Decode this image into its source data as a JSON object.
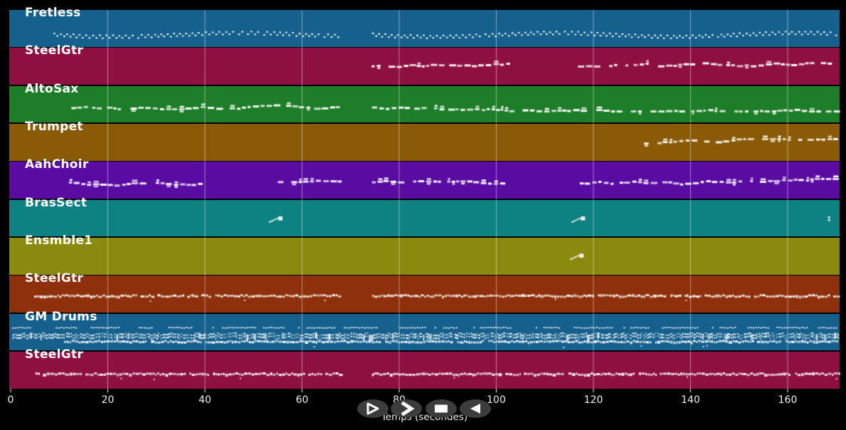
{
  "app": {
    "kind": "midi-track-player",
    "background_color": "#000000",
    "note_color": "#ffffff",
    "gridline_color": "rgba(255,255,255,0.45)"
  },
  "axis": {
    "label": "Temps (secondes)",
    "ticks": [
      0,
      20,
      40,
      60,
      80,
      100,
      120,
      140,
      160
    ],
    "max_seconds": 171
  },
  "controls": {
    "buttons": [
      {
        "name": "play",
        "icon": "play-icon",
        "shape": "triangle-right-outline"
      },
      {
        "name": "fast-forward",
        "icon": "fast-forward-icon",
        "shape": "chevron-right"
      },
      {
        "name": "stop",
        "icon": "stop-icon",
        "shape": "square"
      },
      {
        "name": "rewind",
        "icon": "rewind-icon",
        "shape": "triangle-left"
      }
    ]
  },
  "tracks": [
    {
      "name": "Fretless",
      "color": "#16608E",
      "segments": [
        {
          "start": 8.8,
          "end": 67.8,
          "row": 0.66,
          "style": "zigzag"
        },
        {
          "start": 74.4,
          "end": 170.4,
          "row": 0.66,
          "style": "zigzag"
        }
      ]
    },
    {
      "name": "SteelGtr",
      "color": "#8E1040",
      "segments": [
        {
          "start": 74.3,
          "end": 102.3,
          "row": 0.5,
          "style": "melody"
        },
        {
          "start": 116.8,
          "end": 130.9,
          "row": 0.5,
          "style": "melody"
        },
        {
          "start": 133.3,
          "end": 169.2,
          "row": 0.5,
          "style": "melody"
        }
      ]
    },
    {
      "name": "AltoSax",
      "color": "#1E7D28",
      "segments": [
        {
          "start": 12.5,
          "end": 67.8,
          "row": 0.55,
          "style": "melody"
        },
        {
          "start": 74.4,
          "end": 170.4,
          "row": 0.55,
          "style": "melody"
        }
      ]
    },
    {
      "name": "Trumpet",
      "color": "#8A5A06",
      "segments": [
        {
          "start": 130.4,
          "end": 170.4,
          "row": 0.5,
          "style": "melody"
        }
      ]
    },
    {
      "name": "AahChoir",
      "color": "#5A0CA2",
      "segments": [
        {
          "start": 12.0,
          "end": 39.7,
          "row": 0.55,
          "style": "chords"
        },
        {
          "start": 55.0,
          "end": 68.1,
          "row": 0.55,
          "style": "chords"
        },
        {
          "start": 74.4,
          "end": 101.8,
          "row": 0.55,
          "style": "chords"
        },
        {
          "start": 117.2,
          "end": 170.4,
          "row": 0.55,
          "style": "chords"
        }
      ]
    },
    {
      "name": "BrasSect",
      "color": "#0E8182",
      "segments": [
        {
          "start": 53.2,
          "end": 55.8,
          "row": 0.5,
          "style": "cluster"
        },
        {
          "start": 115.5,
          "end": 117.8,
          "row": 0.5,
          "style": "cluster"
        },
        {
          "start": 168.3,
          "end": 168.9,
          "row": 0.5,
          "style": "cluster"
        }
      ]
    },
    {
      "name": "Ensmble1",
      "color": "#8A8A0E",
      "segments": [
        {
          "start": 115.2,
          "end": 117.2,
          "row": 0.48,
          "style": "cluster"
        }
      ]
    },
    {
      "name": "SteelGtr",
      "color": "#8F300C",
      "segments": [
        {
          "start": 4.8,
          "end": 67.8,
          "row": 0.52,
          "style": "dense"
        },
        {
          "start": 74.4,
          "end": 170.6,
          "row": 0.52,
          "style": "dense"
        }
      ]
    },
    {
      "name": "GM Drums",
      "color": "#16608E",
      "segments": [
        {
          "start": 0.3,
          "end": 170.6,
          "row": 0.36,
          "style": "sparse"
        },
        {
          "start": 0.3,
          "end": 170.6,
          "row": 0.54,
          "style": "drumdense"
        },
        {
          "start": 0.3,
          "end": 170.6,
          "row": 0.62,
          "style": "drumdense"
        },
        {
          "start": 11.0,
          "end": 170.6,
          "row": 0.73,
          "style": "dense"
        }
      ]
    },
    {
      "name": "SteelGtr",
      "color": "#8E1040",
      "segments": [
        {
          "start": 5.1,
          "end": 67.7,
          "row": 0.58,
          "style": "dense"
        },
        {
          "start": 74.4,
          "end": 170.6,
          "row": 0.58,
          "style": "dense"
        }
      ]
    }
  ]
}
